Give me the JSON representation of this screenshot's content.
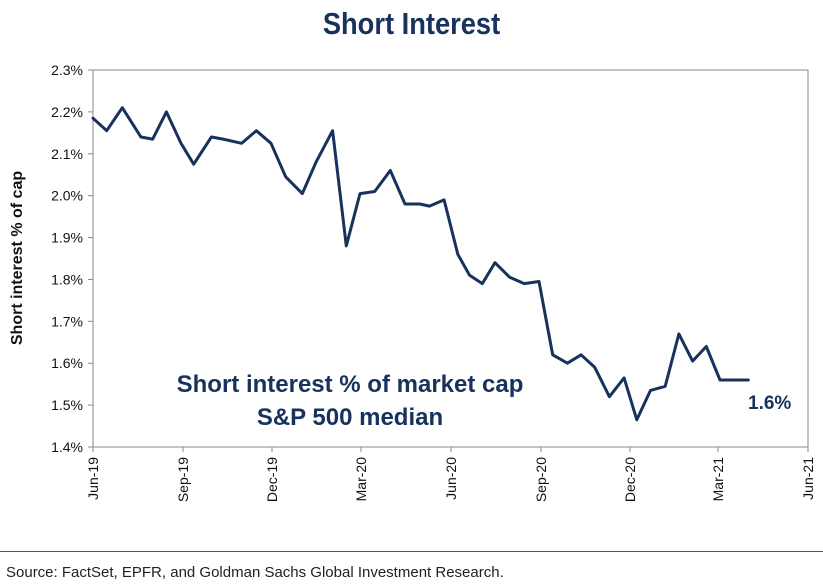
{
  "chart_data": {
    "type": "line",
    "title": "Short Interest",
    "ylabel": "Short interest % of cap",
    "xlabel": "",
    "ylim": [
      1.4,
      2.3
    ],
    "y_ticks": [
      "1.4%",
      "1.5%",
      "1.6%",
      "1.7%",
      "1.8%",
      "1.9%",
      "2.0%",
      "2.1%",
      "2.2%",
      "2.3%"
    ],
    "x_ticks": [
      "Jun-19",
      "Sep-19",
      "Dec-19",
      "Mar-20",
      "Jun-20",
      "Sep-20",
      "Dec-20",
      "Mar-21",
      "Jun-21"
    ],
    "annotation": [
      "Short interest % of market cap",
      "S&P 500 median"
    ],
    "end_label": "1.6%",
    "grid": false,
    "line_color": "#17325c",
    "series": [
      {
        "x": [
          "2019-06-01",
          "2019-06-15",
          "2019-07-01",
          "2019-07-20",
          "2019-08-01",
          "2019-08-15",
          "2019-08-30",
          "2019-09-12",
          "2019-09-30",
          "2019-10-12",
          "2019-10-31",
          "2019-11-15",
          "2019-11-30",
          "2019-12-15",
          "2020-01-01",
          "2020-01-15",
          "2020-02-01",
          "2020-02-15",
          "2020-02-29",
          "2020-03-15",
          "2020-03-31",
          "2020-04-15",
          "2020-04-30",
          "2020-05-10",
          "2020-05-25",
          "2020-06-08",
          "2020-06-20",
          "2020-07-03",
          "2020-07-16",
          "2020-07-31",
          "2020-08-15",
          "2020-08-30",
          "2020-09-13",
          "2020-09-28",
          "2020-10-12",
          "2020-10-26",
          "2020-11-10",
          "2020-11-25",
          "2020-12-08",
          "2020-12-22",
          "2021-01-06",
          "2021-01-20",
          "2021-02-03",
          "2021-02-17",
          "2021-03-03",
          "2021-03-18",
          "2021-04-01"
        ],
        "values": [
          2.185,
          2.155,
          2.21,
          2.14,
          2.135,
          2.2,
          2.125,
          2.075,
          2.14,
          2.135,
          2.125,
          2.155,
          2.125,
          2.045,
          2.005,
          2.08,
          2.155,
          1.88,
          2.005,
          2.01,
          2.06,
          1.98,
          1.98,
          1.975,
          1.99,
          1.86,
          1.81,
          1.79,
          1.84,
          1.805,
          1.79,
          1.795,
          1.62,
          1.6,
          1.62,
          1.59,
          1.52,
          1.565,
          1.465,
          1.535,
          1.545,
          1.67,
          1.605,
          1.64,
          1.56,
          1.56,
          1.56
        ]
      }
    ]
  },
  "footer": {
    "source": "Source: FactSet, EPFR, and Goldman Sachs Global Investment Research."
  }
}
